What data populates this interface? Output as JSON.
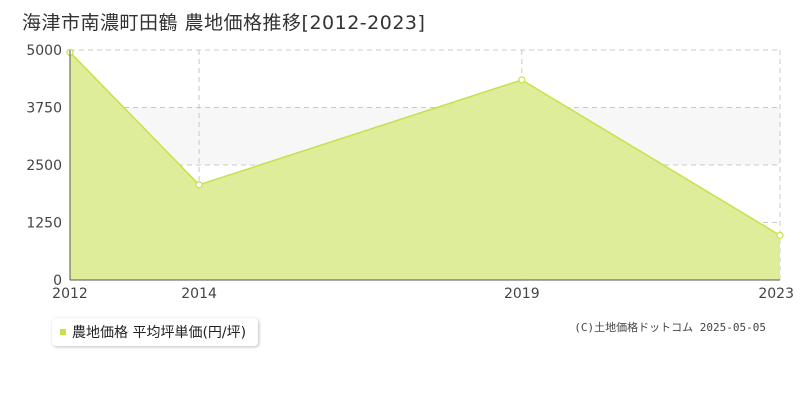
{
  "page_title": "海津市南濃町田鶴 農地価格推移[2012-2023]",
  "legend": {
    "label": "農地価格 平均坪単価(円/坪)"
  },
  "credit": "(C)土地価格ドットコム 2025-05-05",
  "colors": {
    "area_fill": "#dcec94",
    "area_line": "#c8e04a",
    "marker_fill": "#ffffff",
    "band": "#f7f7f7",
    "grid": "#c8c8c8",
    "axis": "#555555"
  },
  "chart_data": {
    "type": "area",
    "title": "海津市南濃町田鶴 農地価格推移[2012-2023]",
    "x": [
      2012,
      2014,
      2019,
      2023
    ],
    "series": [
      {
        "name": "農地価格 平均坪単価(円/坪)",
        "values": [
          4950,
          2070,
          4350,
          970
        ]
      }
    ],
    "x_ticks": [
      "2012",
      "2014",
      "2019",
      "2023"
    ],
    "y_ticks": [
      0,
      1250,
      2500,
      3750,
      5000
    ],
    "ylim": [
      0,
      5000
    ],
    "xlabel": "",
    "ylabel": "",
    "grid": true,
    "legend_position": "bottom-left"
  }
}
